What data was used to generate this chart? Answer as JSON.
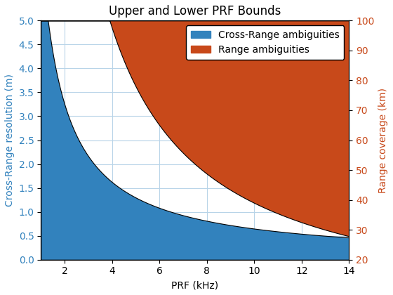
{
  "title": "Upper and Lower PRF Bounds",
  "xlabel": "PRF (kHz)",
  "ylabel_left": "Cross-Range resolution (m)",
  "ylabel_right": "Range coverage (km)",
  "xlim": [
    1,
    14
  ],
  "ylim_left": [
    0,
    5
  ],
  "ylim_right": [
    20,
    100
  ],
  "prf_min": 1.0,
  "prf_max": 14.0,
  "n_points": 1000,
  "blue_color": "#3282BD",
  "orange_color": "#C8491A",
  "background_color": "#FFFFFF",
  "grid_color": "#B8D4E8",
  "blue_label": "Cross-Range ambiguities",
  "orange_label": "Range ambiguities",
  "left_axis_color": "#3282BD",
  "right_axis_color": "#C8491A",
  "blue_k": 6.5,
  "orange_k": 390.0,
  "orange_upper_km": 100,
  "orange_lower_km": 20,
  "title_fontsize": 12,
  "label_fontsize": 10,
  "tick_fontsize": 10,
  "xticks": [
    2,
    4,
    6,
    8,
    10,
    12,
    14
  ],
  "yticks_left": [
    0,
    0.5,
    1.0,
    1.5,
    2.0,
    2.5,
    3.0,
    3.5,
    4.0,
    4.5,
    5.0
  ],
  "yticks_right": [
    20,
    30,
    40,
    50,
    60,
    70,
    80,
    90,
    100
  ]
}
